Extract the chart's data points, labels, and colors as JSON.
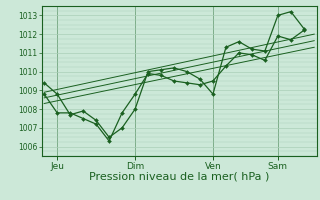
{
  "bg_color": "#cce8d8",
  "grid_color": "#aacfb8",
  "line_color": "#1a6020",
  "marker_color": "#1a6020",
  "xlabel": "Pression niveau de la mer( hPa )",
  "xlabel_fontsize": 8,
  "yticks": [
    1006,
    1007,
    1008,
    1009,
    1010,
    1011,
    1012,
    1013
  ],
  "ylim": [
    1005.5,
    1013.5
  ],
  "xtick_labels": [
    "Jeu",
    "Dim",
    "Ven",
    "Sam"
  ],
  "xtick_positions": [
    0.5,
    3.5,
    6.5,
    9.0
  ],
  "xlim": [
    -0.1,
    10.5
  ],
  "day_lines": [
    0.5,
    3.5,
    6.5,
    9.0
  ],
  "series1_x": [
    0.0,
    0.5,
    1.0,
    1.5,
    2.0,
    2.5,
    3.0,
    3.5,
    4.0,
    4.5,
    5.0,
    5.5,
    6.0,
    6.5,
    7.0,
    7.5,
    8.0,
    8.5,
    9.0,
    9.5,
    10.0
  ],
  "series1_y": [
    1009.4,
    1008.8,
    1007.7,
    1007.9,
    1007.4,
    1006.5,
    1007.0,
    1008.0,
    1010.0,
    1010.1,
    1010.2,
    1010.0,
    1009.6,
    1008.8,
    1011.3,
    1011.6,
    1011.2,
    1011.1,
    1013.0,
    1013.2,
    1012.3
  ],
  "trend1_x": [
    0.0,
    10.4
  ],
  "trend1_y": [
    1008.9,
    1012.0
  ],
  "trend2_x": [
    0.0,
    10.4
  ],
  "trend2_y": [
    1008.6,
    1011.65
  ],
  "trend3_x": [
    0.0,
    10.4
  ],
  "trend3_y": [
    1008.3,
    1011.3
  ],
  "series2_x": [
    0.0,
    0.5,
    1.0,
    1.5,
    2.0,
    2.5,
    3.0,
    3.5,
    4.0,
    4.5,
    5.0,
    5.5,
    6.0,
    6.5,
    7.0,
    7.5,
    8.0,
    8.5,
    9.0,
    9.5,
    10.0
  ],
  "series2_y": [
    1008.8,
    1007.8,
    1007.8,
    1007.5,
    1007.2,
    1006.3,
    1007.8,
    1008.8,
    1009.9,
    1009.8,
    1009.5,
    1009.4,
    1009.3,
    1009.5,
    1010.3,
    1011.0,
    1010.9,
    1010.6,
    1011.9,
    1011.7,
    1012.2
  ],
  "ytick_fontsize": 5.5,
  "xtick_fontsize": 6.5
}
